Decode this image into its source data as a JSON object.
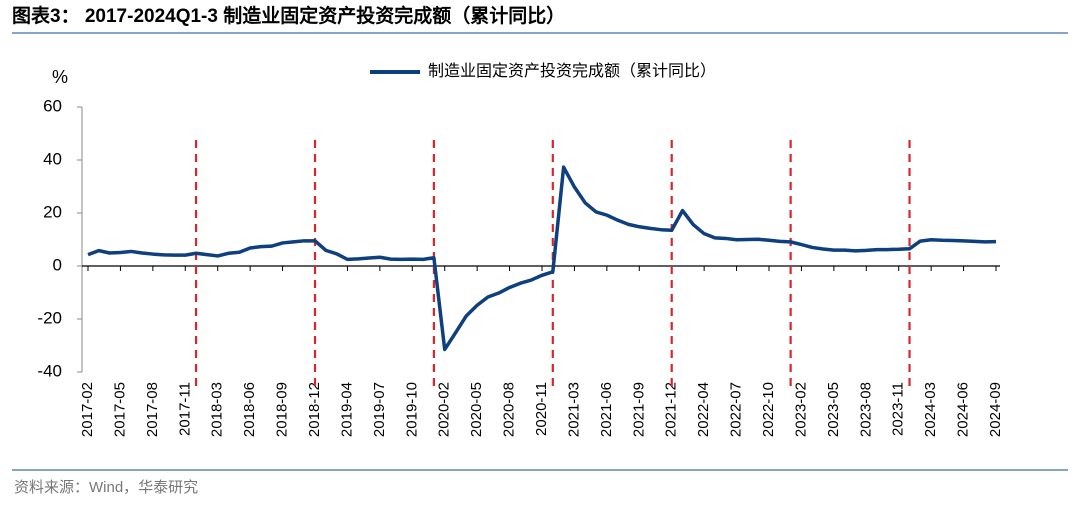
{
  "chart_data": {
    "type": "line",
    "title": "图表3： 2017-2024Q1-3 制造业固定资产投资完成额（累计同比）",
    "y_unit": "%",
    "source": "资料来源：Wind，华泰研究",
    "categories": [
      "2017-02",
      null,
      null,
      "2017-05",
      null,
      null,
      "2017-08",
      null,
      null,
      "2017-11",
      null,
      null,
      "2018-03",
      null,
      null,
      "2018-06",
      null,
      null,
      "2018-09",
      null,
      null,
      "2018-12",
      null,
      null,
      "2019-04",
      null,
      null,
      "2019-07",
      null,
      null,
      "2019-10",
      null,
      null,
      "2020-02",
      null,
      null,
      "2020-05",
      null,
      null,
      "2020-08",
      null,
      null,
      "2020-11",
      null,
      null,
      "2021-03",
      null,
      null,
      "2021-06",
      null,
      null,
      "2021-09",
      null,
      null,
      "2021-12",
      null,
      null,
      "2022-04",
      null,
      null,
      "2022-07",
      null,
      null,
      "2022-10",
      null,
      null,
      "2023-02",
      null,
      null,
      "2023-05",
      null,
      null,
      "2023-08",
      null,
      null,
      "2023-11",
      null,
      null,
      "2024-03",
      null,
      null,
      "2024-06",
      null,
      null,
      "2024-09"
    ],
    "series": [
      {
        "name": "制造业固定资产投资完成额（累计同比）",
        "color": "#0e3f7e",
        "values": [
          4.3,
          5.8,
          4.9,
          5.1,
          5.5,
          4.9,
          4.5,
          4.2,
          4.1,
          4.1,
          4.8,
          4.3,
          3.8,
          4.8,
          5.2,
          6.8,
          7.3,
          7.5,
          8.7,
          9.1,
          9.5,
          9.5,
          5.9,
          4.6,
          2.5,
          2.7,
          3.0,
          3.3,
          2.6,
          2.5,
          2.6,
          2.5,
          3.1,
          -31.5,
          -25.2,
          -18.8,
          -14.8,
          -11.7,
          -10.2,
          -8.1,
          -6.5,
          -5.3,
          -3.5,
          -2.2,
          37.3,
          29.8,
          23.8,
          20.4,
          19.2,
          17.3,
          15.7,
          14.8,
          14.2,
          13.7,
          13.5,
          20.9,
          15.6,
          12.2,
          10.6,
          10.4,
          9.9,
          10.0,
          10.1,
          9.7,
          9.3,
          9.1,
          8.1,
          7.0,
          6.4,
          6.0,
          6.0,
          5.7,
          5.9,
          6.2,
          6.2,
          6.3,
          6.5,
          9.4,
          9.9,
          9.7,
          9.6,
          9.5,
          9.3,
          9.1,
          9.2
        ]
      }
    ],
    "ylim": [
      -40,
      60
    ],
    "yticks": [
      -40,
      -20,
      0,
      20,
      40,
      60
    ],
    "grid": false,
    "legend": "top"
  }
}
